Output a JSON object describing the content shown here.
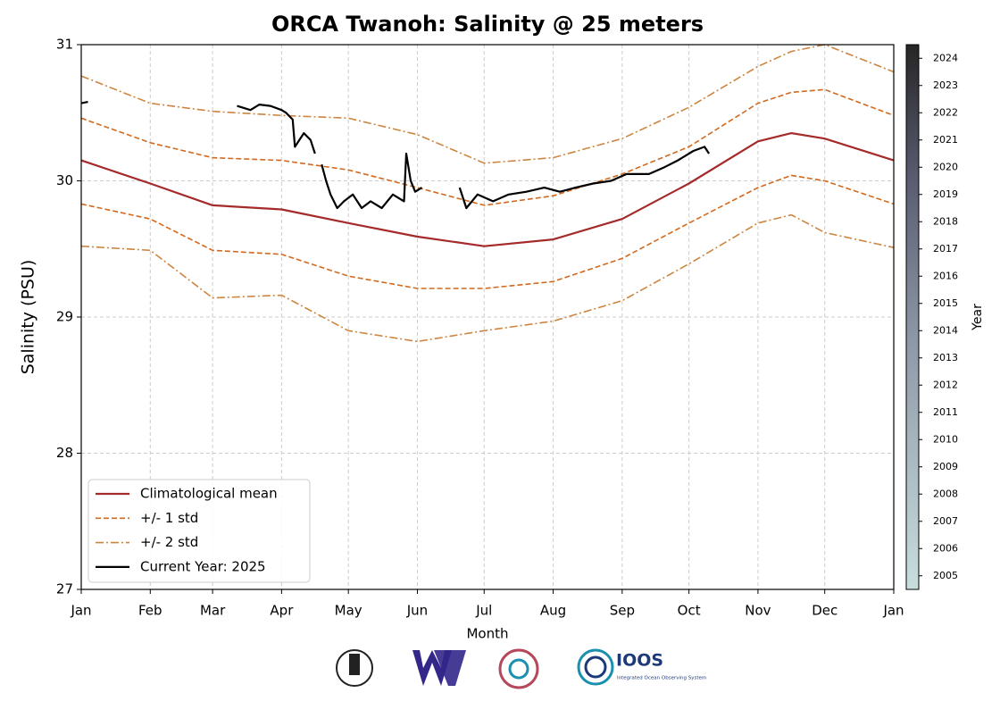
{
  "chart_data": {
    "type": "line",
    "title": "ORCA Twanoh: Salinity @ 25 meters",
    "x_label": "Month",
    "y_label": "Salinity (PSU)",
    "xlim": [
      0,
      365
    ],
    "xticks": [
      {
        "value": 0,
        "label": "Jan"
      },
      {
        "value": 31,
        "label": "Feb"
      },
      {
        "value": 59,
        "label": "Mar"
      },
      {
        "value": 90,
        "label": "Apr"
      },
      {
        "value": 120,
        "label": "May"
      },
      {
        "value": 151,
        "label": "Jun"
      },
      {
        "value": 181,
        "label": "Jul"
      },
      {
        "value": 212,
        "label": "Aug"
      },
      {
        "value": 243,
        "label": "Sep"
      },
      {
        "value": 273,
        "label": "Oct"
      },
      {
        "value": 304,
        "label": "Nov"
      },
      {
        "value": 334,
        "label": "Dec"
      },
      {
        "value": 365,
        "label": "Jan"
      }
    ],
    "ylim": [
      27,
      31
    ],
    "yticks": [
      27,
      28,
      29,
      30,
      31
    ],
    "grid": true,
    "legend": "lower left",
    "series": [
      {
        "name": "Climatological mean",
        "color": "#a52a2a",
        "linestyle": "solid",
        "x": [
          0,
          31,
          59,
          90,
          120,
          151,
          181,
          212,
          243,
          273,
          304,
          319,
          334,
          365
        ],
        "values": [
          30.15,
          29.98,
          29.82,
          29.79,
          29.69,
          29.59,
          29.52,
          29.57,
          29.72,
          29.98,
          30.29,
          30.35,
          30.31,
          30.15
        ]
      },
      {
        "name": "+/- 1 std",
        "color": "#d2691e",
        "linestyle": "dashed",
        "x": [
          0,
          31,
          59,
          90,
          120,
          151,
          181,
          212,
          243,
          273,
          304,
          319,
          334,
          365
        ],
        "values": [
          30.46,
          30.28,
          30.17,
          30.15,
          30.08,
          29.95,
          29.82,
          29.89,
          30.05,
          30.25,
          30.57,
          30.65,
          30.67,
          30.48
        ],
        "lower": [
          29.83,
          29.72,
          29.49,
          29.46,
          29.3,
          29.21,
          29.21,
          29.26,
          29.43,
          29.69,
          29.95,
          30.04,
          30.0,
          29.83
        ]
      },
      {
        "name": "+/- 2 std",
        "color": "#cd853f",
        "linestyle": "dashdot",
        "x": [
          0,
          31,
          59,
          90,
          120,
          151,
          181,
          212,
          243,
          273,
          304,
          319,
          334,
          365
        ],
        "values": [
          30.77,
          30.57,
          30.51,
          30.48,
          30.46,
          30.34,
          30.13,
          30.17,
          30.31,
          30.54,
          30.84,
          30.95,
          31.0,
          30.8
        ],
        "lower": [
          29.52,
          29.49,
          29.14,
          29.16,
          28.9,
          28.82,
          28.9,
          28.97,
          29.12,
          29.39,
          29.69,
          29.75,
          29.62,
          29.51
        ]
      },
      {
        "name": "Current Year: 2025",
        "color": "#000000",
        "linestyle": "solid",
        "x": [
          0,
          3,
          40,
          70,
          76,
          80,
          85,
          90,
          92,
          95,
          96,
          100,
          103,
          105,
          106,
          108,
          110,
          112,
          115,
          118,
          122,
          126,
          130,
          135,
          140,
          145,
          146,
          148,
          150,
          153,
          160,
          170,
          173,
          178,
          185,
          192,
          200,
          208,
          215,
          222,
          230,
          238,
          245,
          255,
          262,
          268,
          275,
          280,
          282
        ],
        "values": [
          30.57,
          30.58,
          null,
          30.55,
          30.52,
          30.56,
          30.55,
          30.52,
          30.5,
          30.45,
          30.25,
          30.35,
          30.3,
          30.2,
          null,
          30.12,
          30.0,
          29.9,
          29.8,
          29.85,
          29.9,
          29.8,
          29.85,
          29.8,
          29.9,
          29.85,
          30.2,
          30.0,
          29.92,
          29.95,
          null,
          29.95,
          29.8,
          29.9,
          29.85,
          29.9,
          29.92,
          29.95,
          29.92,
          29.95,
          29.98,
          30.0,
          30.05,
          30.05,
          30.1,
          30.15,
          30.22,
          30.25,
          30.2
        ]
      }
    ],
    "colorbar": {
      "label": "Year",
      "lim": [
        2004.5,
        2024.5
      ],
      "ticks": [
        2005,
        2006,
        2007,
        2008,
        2009,
        2010,
        2011,
        2012,
        2013,
        2014,
        2015,
        2016,
        2017,
        2018,
        2019,
        2020,
        2021,
        2022,
        2023,
        2024
      ]
    }
  },
  "footer": {
    "logo_text": "IOOS",
    "logo_subtext": "Integrated Ocean Observing System"
  }
}
